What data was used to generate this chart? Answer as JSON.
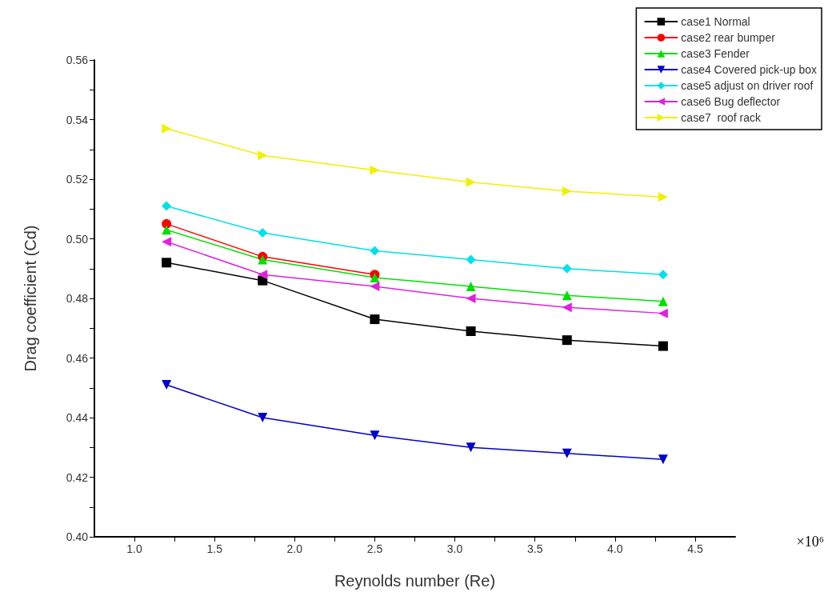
{
  "chart_data": {
    "type": "line",
    "xlabel": "Reynolds number (Re)",
    "ylabel": "Drag coefficient (Cd)",
    "x": [
      1.2,
      1.8,
      2.5,
      3.1,
      3.7,
      4.3
    ],
    "series": [
      {
        "name": "case1 Normal",
        "color": "#000000",
        "marker": "square",
        "values": [
          0.492,
          0.486,
          0.473,
          0.469,
          0.466,
          0.464
        ]
      },
      {
        "name": "case2 rear bumper",
        "color": "#ff0000",
        "marker": "circle",
        "values": [
          0.505,
          0.494,
          0.488,
          null,
          null,
          null
        ]
      },
      {
        "name": "case3 Fender",
        "color": "#00e000",
        "marker": "triangle",
        "values": [
          0.503,
          0.493,
          0.487,
          0.484,
          0.481,
          0.479
        ]
      },
      {
        "name": "case4 Covered pick-up box",
        "color": "#0000cc",
        "marker": "triangle-down",
        "values": [
          0.451,
          0.44,
          0.434,
          0.43,
          0.428,
          0.426
        ]
      },
      {
        "name": "case5 adjust on driver roof",
        "color": "#00e0e8",
        "marker": "diamond",
        "values": [
          0.511,
          0.502,
          0.496,
          0.493,
          0.49,
          0.488
        ]
      },
      {
        "name": "case6 Bug deflector",
        "color": "#e020e0",
        "marker": "triangle-left",
        "values": [
          0.499,
          0.488,
          0.484,
          0.48,
          0.477,
          0.475
        ]
      },
      {
        "name": "case7  roof rack",
        "color": "#f0f000",
        "marker": "triangle-right",
        "values": [
          0.537,
          0.528,
          0.523,
          0.519,
          0.516,
          0.514
        ]
      }
    ],
    "xlim": [
      0.75,
      4.75
    ],
    "xticks": [
      {
        "value": 1.0,
        "label": "1.0"
      },
      {
        "value": 1.25,
        "label": null
      },
      {
        "value": 1.5,
        "label": "1.5"
      },
      {
        "value": 1.75,
        "label": null
      },
      {
        "value": 2.0,
        "label": "2.0"
      },
      {
        "value": 2.25,
        "label": null
      },
      {
        "value": 2.5,
        "label": "2.5"
      },
      {
        "value": 2.75,
        "label": null
      },
      {
        "value": 3.0,
        "label": "3.0"
      },
      {
        "value": 3.25,
        "label": null
      },
      {
        "value": 3.5,
        "label": "3.5"
      },
      {
        "value": 3.75,
        "label": null
      },
      {
        "value": 4.0,
        "label": "4.0"
      },
      {
        "value": 4.25,
        "label": null
      },
      {
        "value": 4.5,
        "label": "4.5"
      }
    ],
    "ylim": [
      0.4,
      0.56
    ],
    "yticks": [
      {
        "value": 0.4,
        "label": "0.40"
      },
      {
        "value": 0.41,
        "label": null
      },
      {
        "value": 0.42,
        "label": "0.42"
      },
      {
        "value": 0.43,
        "label": null
      },
      {
        "value": 0.44,
        "label": "0.44"
      },
      {
        "value": 0.45,
        "label": null
      },
      {
        "value": 0.46,
        "label": "0.46"
      },
      {
        "value": 0.47,
        "label": null
      },
      {
        "value": 0.48,
        "label": "0.48"
      },
      {
        "value": 0.49,
        "label": null
      },
      {
        "value": 0.5,
        "label": "0.50"
      },
      {
        "value": 0.51,
        "label": null
      },
      {
        "value": 0.52,
        "label": "0.52"
      },
      {
        "value": 0.53,
        "label": null
      },
      {
        "value": 0.54,
        "label": "0.54"
      },
      {
        "value": 0.55,
        "label": null
      },
      {
        "value": 0.56,
        "label": "0.56"
      }
    ],
    "annotations": [
      "×10⁶"
    ],
    "grid": false,
    "legend": "top right",
    "line_style": "solid"
  }
}
